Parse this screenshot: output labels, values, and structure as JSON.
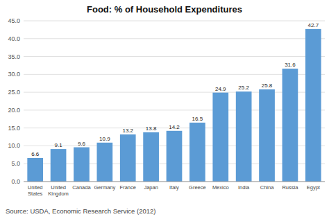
{
  "chart_data": {
    "type": "bar",
    "title": "Food: % of Household Expenditures",
    "categories": [
      "United\nStates",
      "United\nKingdom",
      "Canada",
      "Germany",
      "France",
      "Japan",
      "Italy",
      "Greece",
      "Mexico",
      "India",
      "China",
      "Russia",
      "Egypt"
    ],
    "values": [
      6.6,
      9.1,
      9.6,
      10.9,
      13.2,
      13.8,
      14.2,
      16.5,
      24.9,
      25.2,
      25.8,
      31.6,
      42.7
    ],
    "color": "#5b9bd5",
    "ylim": [
      0,
      45
    ],
    "yticks": [
      {
        "value": 0,
        "label": "0.0"
      },
      {
        "value": 5,
        "label": "5.0"
      },
      {
        "value": 10,
        "label": "10.0"
      },
      {
        "value": 15,
        "label": "15.0"
      },
      {
        "value": 20,
        "label": "20.0"
      },
      {
        "value": 25,
        "label": "25.0"
      },
      {
        "value": 30,
        "label": "30.0"
      },
      {
        "value": 35,
        "label": "35.0"
      },
      {
        "value": 40,
        "label": "40.0"
      },
      {
        "value": 45,
        "label": "45.0"
      }
    ],
    "grid": true,
    "data_labels": true,
    "source": "Source: USDA, Economic Research Service (2012)"
  }
}
